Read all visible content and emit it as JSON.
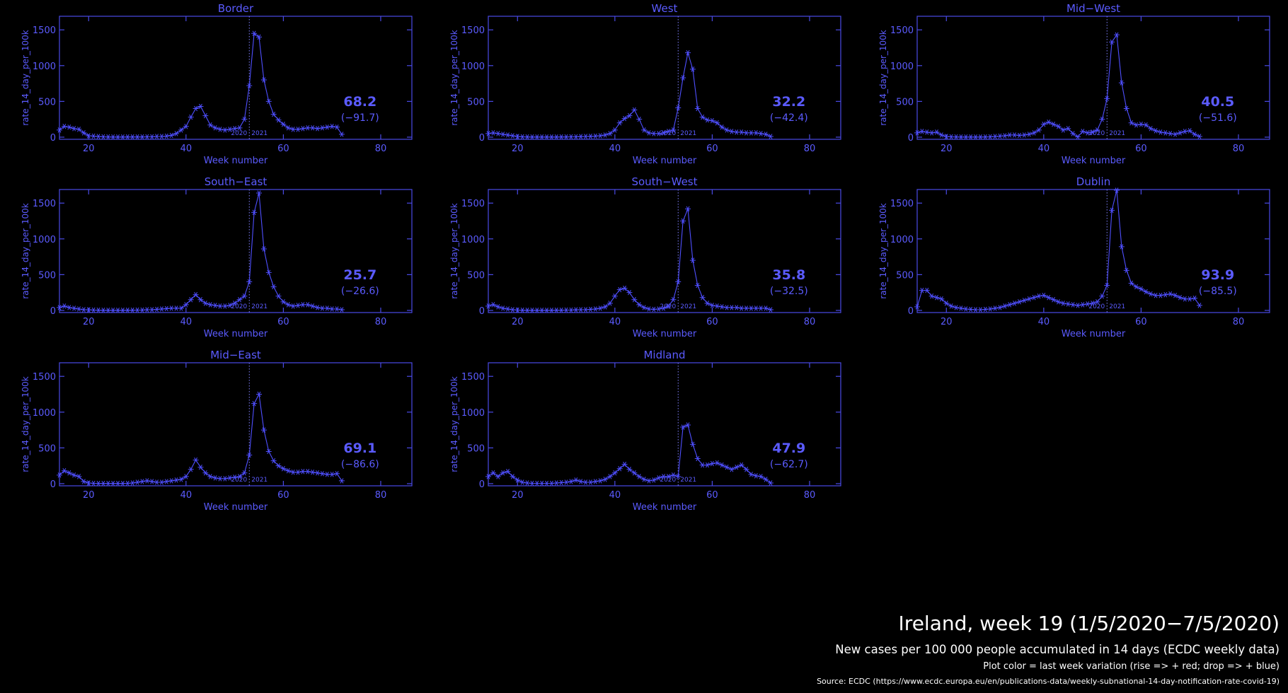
{
  "chart_data": [
    {
      "type": "line",
      "title": "Border",
      "xlabel": "Week number",
      "ylabel": "rate_14_day_per_100k",
      "color": "#4f4fff",
      "xlim": [
        14,
        86.4
      ],
      "ylim": [
        -30,
        1690
      ],
      "xticks": [
        20,
        40,
        60,
        80
      ],
      "yticks": [
        0,
        500,
        1000,
        1500
      ],
      "year_marker": {
        "x": 53,
        "labels": [
          "2020",
          "2021"
        ]
      },
      "annotation": {
        "current": "68.2",
        "change": "(−91.7)"
      },
      "x": [
        14,
        15,
        16,
        17,
        18,
        19,
        20,
        21,
        22,
        23,
        24,
        25,
        26,
        27,
        28,
        29,
        30,
        31,
        32,
        33,
        34,
        35,
        36,
        37,
        38,
        39,
        40,
        41,
        42,
        43,
        44,
        45,
        46,
        47,
        48,
        49,
        50,
        51,
        52,
        53,
        54,
        55,
        56,
        57,
        58,
        59,
        60,
        61,
        62,
        63,
        64,
        65,
        66,
        67,
        68,
        69,
        70,
        71,
        72
      ],
      "values": [
        100,
        150,
        140,
        120,
        110,
        60,
        20,
        15,
        10,
        5,
        3,
        2,
        2,
        2,
        3,
        3,
        3,
        3,
        5,
        5,
        10,
        10,
        15,
        25,
        50,
        100,
        150,
        280,
        400,
        430,
        300,
        170,
        130,
        110,
        100,
        110,
        120,
        130,
        250,
        720,
        1450,
        1400,
        800,
        500,
        320,
        240,
        180,
        130,
        110,
        110,
        120,
        130,
        130,
        120,
        130,
        140,
        150,
        140,
        40
      ]
    },
    {
      "type": "line",
      "title": "West",
      "xlabel": "Week number",
      "ylabel": "rate_14_day_per_100k",
      "color": "#4f4fff",
      "xlim": [
        14,
        86.4
      ],
      "ylim": [
        -30,
        1690
      ],
      "xticks": [
        20,
        40,
        60,
        80
      ],
      "yticks": [
        0,
        500,
        1000,
        1500
      ],
      "year_marker": {
        "x": 53,
        "labels": [
          "2020",
          "2021"
        ]
      },
      "annotation": {
        "current": "32.2",
        "change": "(−42.4)"
      },
      "x": [
        14,
        15,
        16,
        17,
        18,
        19,
        20,
        21,
        22,
        23,
        24,
        25,
        26,
        27,
        28,
        29,
        30,
        31,
        32,
        33,
        34,
        35,
        36,
        37,
        38,
        39,
        40,
        41,
        42,
        43,
        44,
        45,
        46,
        47,
        48,
        49,
        50,
        51,
        52,
        53,
        54,
        55,
        56,
        57,
        58,
        59,
        60,
        61,
        62,
        63,
        64,
        65,
        66,
        67,
        68,
        69,
        70,
        71,
        72
      ],
      "values": [
        50,
        60,
        50,
        40,
        30,
        20,
        10,
        5,
        3,
        2,
        2,
        2,
        2,
        2,
        2,
        3,
        3,
        5,
        5,
        8,
        10,
        12,
        15,
        20,
        30,
        50,
        100,
        200,
        260,
        300,
        380,
        250,
        100,
        60,
        50,
        50,
        60,
        80,
        100,
        410,
        830,
        1180,
        950,
        400,
        280,
        240,
        230,
        200,
        140,
        100,
        80,
        70,
        70,
        60,
        60,
        60,
        50,
        40,
        10
      ]
    },
    {
      "type": "line",
      "title": "Mid−West",
      "xlabel": "Week number",
      "ylabel": "rate_14_day_per_100k",
      "color": "#4f4fff",
      "xlim": [
        14,
        86.4
      ],
      "ylim": [
        -30,
        1690
      ],
      "xticks": [
        20,
        40,
        60,
        80
      ],
      "yticks": [
        0,
        500,
        1000,
        1500
      ],
      "year_marker": {
        "x": 53,
        "labels": [
          "2020",
          "2021"
        ]
      },
      "annotation": {
        "current": "40.5",
        "change": "(−51.6)"
      },
      "x": [
        14,
        15,
        16,
        17,
        18,
        19,
        20,
        21,
        22,
        23,
        24,
        25,
        26,
        27,
        28,
        29,
        30,
        31,
        32,
        33,
        34,
        35,
        36,
        37,
        38,
        39,
        40,
        41,
        42,
        43,
        44,
        45,
        46,
        47,
        48,
        49,
        50,
        51,
        52,
        53,
        54,
        55,
        56,
        57,
        58,
        59,
        60,
        61,
        62,
        63,
        64,
        65,
        66,
        67,
        68,
        69,
        70,
        71,
        72
      ],
      "values": [
        60,
        80,
        70,
        60,
        70,
        30,
        10,
        5,
        3,
        2,
        2,
        2,
        2,
        2,
        3,
        5,
        10,
        15,
        20,
        30,
        30,
        25,
        30,
        40,
        60,
        100,
        180,
        210,
        180,
        150,
        100,
        120,
        50,
        5,
        80,
        60,
        70,
        100,
        250,
        540,
        1330,
        1430,
        760,
        400,
        200,
        170,
        180,
        170,
        120,
        90,
        70,
        60,
        50,
        40,
        60,
        80,
        90,
        40,
        10
      ]
    },
    {
      "type": "line",
      "title": "South−East",
      "xlabel": "Week number",
      "ylabel": "rate_14_day_per_100k",
      "color": "#4f4fff",
      "xlim": [
        14,
        86.4
      ],
      "ylim": [
        -30,
        1690
      ],
      "xticks": [
        20,
        40,
        60,
        80
      ],
      "yticks": [
        0,
        500,
        1000,
        1500
      ],
      "year_marker": {
        "x": 53,
        "labels": [
          "2020",
          "2021"
        ]
      },
      "annotation": {
        "current": "25.7",
        "change": "(−26.6)"
      },
      "x": [
        14,
        15,
        16,
        17,
        18,
        19,
        20,
        21,
        22,
        23,
        24,
        25,
        26,
        27,
        28,
        29,
        30,
        31,
        32,
        33,
        34,
        35,
        36,
        37,
        38,
        39,
        40,
        41,
        42,
        43,
        44,
        45,
        46,
        47,
        48,
        49,
        50,
        51,
        52,
        53,
        54,
        55,
        56,
        57,
        58,
        59,
        60,
        61,
        62,
        63,
        64,
        65,
        66,
        67,
        68,
        69,
        70,
        71,
        72
      ],
      "values": [
        40,
        60,
        40,
        30,
        20,
        10,
        8,
        5,
        3,
        2,
        2,
        2,
        2,
        2,
        3,
        3,
        5,
        5,
        10,
        10,
        15,
        20,
        25,
        30,
        30,
        30,
        80,
        150,
        220,
        150,
        100,
        80,
        70,
        60,
        60,
        70,
        100,
        150,
        200,
        400,
        1370,
        1640,
        860,
        530,
        330,
        200,
        120,
        80,
        60,
        70,
        80,
        80,
        60,
        40,
        30,
        30,
        20,
        20,
        10
      ]
    },
    {
      "type": "line",
      "title": "South−West",
      "xlabel": "Week number",
      "ylabel": "rate_14_day_per_100k",
      "color": "#4f4fff",
      "xlim": [
        14,
        86.4
      ],
      "ylim": [
        -30,
        1690
      ],
      "xticks": [
        20,
        40,
        60,
        80
      ],
      "yticks": [
        0,
        500,
        1000,
        1500
      ],
      "year_marker": {
        "x": 53,
        "labels": [
          "2020",
          "2021"
        ]
      },
      "annotation": {
        "current": "35.8",
        "change": "(−32.5)"
      },
      "x": [
        14,
        15,
        16,
        17,
        18,
        19,
        20,
        21,
        22,
        23,
        24,
        25,
        26,
        27,
        28,
        29,
        30,
        31,
        32,
        33,
        34,
        35,
        36,
        37,
        38,
        39,
        40,
        41,
        42,
        43,
        44,
        45,
        46,
        47,
        48,
        49,
        50,
        51,
        52,
        53,
        54,
        55,
        56,
        57,
        58,
        59,
        60,
        61,
        62,
        63,
        64,
        65,
        66,
        67,
        68,
        69,
        70,
        71,
        72
      ],
      "values": [
        60,
        80,
        50,
        30,
        20,
        10,
        5,
        3,
        2,
        2,
        2,
        2,
        2,
        2,
        3,
        3,
        5,
        5,
        8,
        10,
        10,
        15,
        20,
        30,
        50,
        100,
        200,
        290,
        310,
        250,
        150,
        80,
        40,
        20,
        15,
        20,
        30,
        60,
        150,
        400,
        1250,
        1420,
        700,
        350,
        180,
        100,
        70,
        60,
        50,
        40,
        40,
        40,
        30,
        30,
        30,
        30,
        30,
        30,
        10
      ]
    },
    {
      "type": "line",
      "title": "Dublin",
      "xlabel": "Week number",
      "ylabel": "rate_14_day_per_100k",
      "color": "#4f4fff",
      "xlim": [
        14,
        86.4
      ],
      "ylim": [
        -30,
        1690
      ],
      "xticks": [
        20,
        40,
        60,
        80
      ],
      "yticks": [
        0,
        500,
        1000,
        1500
      ],
      "year_marker": {
        "x": 53,
        "labels": [
          "2020",
          "2021"
        ]
      },
      "annotation": {
        "current": "93.9",
        "change": "(−85.5)"
      },
      "x": [
        14,
        15,
        16,
        17,
        18,
        19,
        20,
        21,
        22,
        23,
        24,
        25,
        26,
        27,
        28,
        29,
        30,
        31,
        32,
        33,
        34,
        35,
        36,
        37,
        38,
        39,
        40,
        41,
        42,
        43,
        44,
        45,
        46,
        47,
        48,
        49,
        50,
        51,
        52,
        53,
        54,
        55,
        56,
        57,
        58,
        59,
        60,
        61,
        62,
        63,
        64,
        65,
        66,
        67,
        68,
        69,
        70,
        71,
        72
      ],
      "values": [
        50,
        280,
        280,
        200,
        180,
        160,
        100,
        60,
        40,
        30,
        20,
        15,
        10,
        10,
        15,
        20,
        30,
        40,
        60,
        80,
        100,
        120,
        140,
        160,
        180,
        200,
        210,
        180,
        150,
        120,
        100,
        90,
        80,
        70,
        80,
        90,
        100,
        120,
        200,
        350,
        1400,
        1680,
        890,
        560,
        380,
        330,
        300,
        260,
        230,
        210,
        210,
        220,
        230,
        210,
        180,
        160,
        160,
        170,
        70
      ]
    },
    {
      "type": "line",
      "title": "Mid−East",
      "xlabel": "Week number",
      "ylabel": "rate_14_day_per_100k",
      "color": "#4f4fff",
      "xlim": [
        14,
        86.4
      ],
      "ylim": [
        -30,
        1690
      ],
      "xticks": [
        20,
        40,
        60,
        80
      ],
      "yticks": [
        0,
        500,
        1000,
        1500
      ],
      "year_marker": {
        "x": 53,
        "labels": [
          "2020",
          "2021"
        ]
      },
      "annotation": {
        "current": "69.1",
        "change": "(−86.6)"
      },
      "x": [
        14,
        15,
        16,
        17,
        18,
        19,
        20,
        21,
        22,
        23,
        24,
        25,
        26,
        27,
        28,
        29,
        30,
        31,
        32,
        33,
        34,
        35,
        36,
        37,
        38,
        39,
        40,
        41,
        42,
        43,
        44,
        45,
        46,
        47,
        48,
        49,
        50,
        51,
        52,
        53,
        54,
        55,
        56,
        57,
        58,
        59,
        60,
        61,
        62,
        63,
        64,
        65,
        66,
        67,
        68,
        69,
        70,
        71,
        72
      ],
      "values": [
        120,
        180,
        150,
        120,
        100,
        30,
        10,
        5,
        3,
        3,
        3,
        3,
        3,
        3,
        5,
        10,
        20,
        30,
        40,
        30,
        20,
        20,
        30,
        40,
        50,
        60,
        100,
        200,
        330,
        230,
        150,
        100,
        80,
        70,
        70,
        80,
        90,
        100,
        150,
        400,
        1120,
        1250,
        750,
        450,
        320,
        250,
        210,
        180,
        160,
        160,
        170,
        170,
        160,
        150,
        140,
        130,
        130,
        140,
        40
      ]
    },
    {
      "type": "line",
      "title": "Midland",
      "xlabel": "Week number",
      "ylabel": "rate_14_day_per_100k",
      "color": "#4f4fff",
      "xlim": [
        14,
        86.4
      ],
      "ylim": [
        -30,
        1690
      ],
      "xticks": [
        20,
        40,
        60,
        80
      ],
      "yticks": [
        0,
        500,
        1000,
        1500
      ],
      "year_marker": {
        "x": 53,
        "labels": [
          "2020",
          "2021"
        ]
      },
      "annotation": {
        "current": "47.9",
        "change": "(−62.7)"
      },
      "x": [
        14,
        15,
        16,
        17,
        18,
        19,
        20,
        21,
        22,
        23,
        24,
        25,
        26,
        27,
        28,
        29,
        30,
        31,
        32,
        33,
        34,
        35,
        36,
        37,
        38,
        39,
        40,
        41,
        42,
        43,
        44,
        45,
        46,
        47,
        48,
        49,
        50,
        51,
        52,
        53,
        54,
        55,
        56,
        57,
        58,
        59,
        60,
        61,
        62,
        63,
        64,
        65,
        66,
        67,
        68,
        69,
        70,
        71,
        72
      ],
      "values": [
        100,
        150,
        100,
        150,
        170,
        100,
        50,
        20,
        10,
        5,
        5,
        5,
        5,
        5,
        10,
        15,
        20,
        30,
        50,
        30,
        20,
        20,
        30,
        40,
        60,
        100,
        150,
        210,
        270,
        200,
        150,
        100,
        60,
        40,
        50,
        80,
        100,
        100,
        120,
        100,
        790,
        820,
        550,
        350,
        260,
        260,
        280,
        290,
        260,
        230,
        200,
        230,
        260,
        200,
        130,
        110,
        100,
        60,
        10
      ]
    }
  ],
  "footer": {
    "title": "Ireland, week 19 (1/5/2020−7/5/2020)",
    "subtitle": "New cases per 100 000 people accumulated in 14 days (ECDC weekly data)",
    "note": "Plot color = last week variation (rise => + red; drop => + blue)",
    "source": "Source: ECDC (https://www.ecdc.europa.eu/en/publications-data/weekly-subnational-14-day-notification-rate-covid-19)"
  }
}
